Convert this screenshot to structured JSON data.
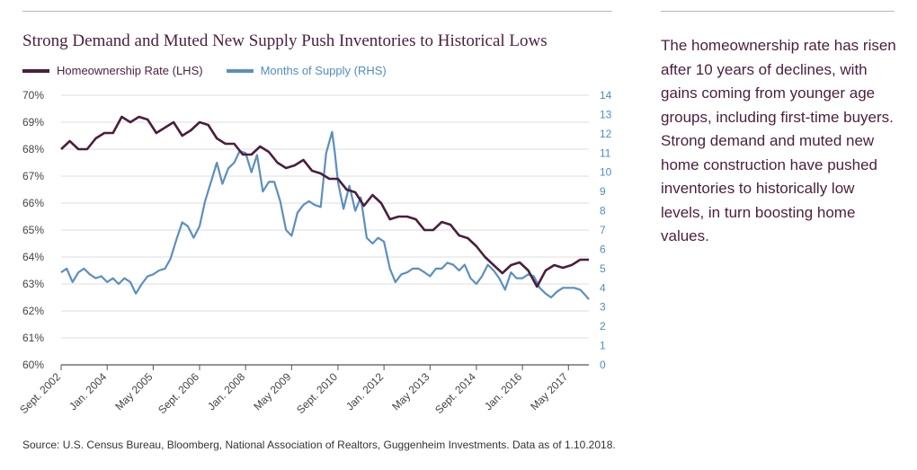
{
  "title": "Strong Demand and Muted New Supply Push Inventories to Historical Lows",
  "side_text": "The homeownership rate has risen after 10 years of declines, with gains coming from younger age groups, including first-time buyers. Strong demand and muted new home construction have pushed inventories to historically low levels, in turn boosting home values.",
  "source": "Source: U.S. Census Bureau, Bloomberg, National Association of Realtors, Guggenheim Investments. Data as of 1.10.2018.",
  "colors": {
    "homeownership": "#4a1f3d",
    "supply": "#5b8fc0",
    "axis": "#777777"
  },
  "chart_data": {
    "type": "line",
    "title": "Strong Demand and Muted New Supply Push Inventories to Historical Lows",
    "x_range": [
      2002.67,
      2017.92
    ],
    "x_ticks": [
      2002.67,
      2004.0,
      2005.33,
      2006.67,
      2008.0,
      2009.33,
      2010.67,
      2012.0,
      2013.33,
      2014.67,
      2016.0,
      2017.33
    ],
    "x_tick_labels": [
      "Sept. 2002",
      "Jan. 2004",
      "May 2005",
      "Sept. 2006",
      "Jan. 2008",
      "May 2009",
      "Sept. 2010",
      "Jan. 2012",
      "May 2013",
      "Sept. 2014",
      "Jan. 2016",
      "May 2017"
    ],
    "y_left": {
      "range": [
        60,
        70
      ],
      "tick_labels": [
        "60%",
        "61%",
        "62%",
        "63%",
        "64%",
        "65%",
        "66%",
        "67%",
        "68%",
        "69%",
        "70%"
      ]
    },
    "y_right": {
      "range": [
        0,
        14
      ],
      "tick_labels": [
        "0",
        "1",
        "2",
        "3",
        "4",
        "5",
        "6",
        "7",
        "8",
        "9",
        "10",
        "11",
        "12",
        "13",
        "14"
      ]
    },
    "grid": true,
    "legend": "top-left",
    "series": [
      {
        "name": "Homeownership Rate (LHS)",
        "axis": "left",
        "x": [
          2002.67,
          2002.92,
          2003.17,
          2003.42,
          2003.67,
          2003.92,
          2004.17,
          2004.42,
          2004.67,
          2004.92,
          2005.17,
          2005.42,
          2005.67,
          2005.92,
          2006.17,
          2006.42,
          2006.67,
          2006.92,
          2007.17,
          2007.42,
          2007.67,
          2007.92,
          2008.17,
          2008.42,
          2008.67,
          2008.92,
          2009.17,
          2009.42,
          2009.67,
          2009.92,
          2010.17,
          2010.42,
          2010.67,
          2010.92,
          2011.17,
          2011.42,
          2011.67,
          2011.92,
          2012.17,
          2012.42,
          2012.67,
          2012.92,
          2013.17,
          2013.42,
          2013.67,
          2013.92,
          2014.17,
          2014.42,
          2014.67,
          2014.92,
          2015.17,
          2015.42,
          2015.67,
          2015.92,
          2016.17,
          2016.42,
          2016.67,
          2016.92,
          2017.17,
          2017.42,
          2017.67,
          2017.92
        ],
        "values": [
          68.0,
          68.3,
          68.0,
          68.0,
          68.4,
          68.6,
          68.6,
          69.2,
          69.0,
          69.2,
          69.1,
          68.6,
          68.8,
          69.0,
          68.5,
          68.7,
          69.0,
          68.9,
          68.4,
          68.2,
          68.2,
          67.8,
          67.8,
          68.1,
          67.9,
          67.5,
          67.3,
          67.4,
          67.6,
          67.2,
          67.1,
          66.9,
          66.9,
          66.5,
          66.4,
          65.9,
          66.3,
          66.0,
          65.4,
          65.5,
          65.5,
          65.4,
          65.0,
          65.0,
          65.3,
          65.2,
          64.8,
          64.7,
          64.4,
          64.0,
          63.7,
          63.4,
          63.7,
          63.8,
          63.5,
          62.9,
          63.5,
          63.7,
          63.6,
          63.7,
          63.9,
          63.9
        ]
      },
      {
        "name": "Months of Supply (RHS)",
        "axis": "right",
        "x": [
          2002.67,
          2002.83,
          2003.0,
          2003.17,
          2003.33,
          2003.5,
          2003.67,
          2003.83,
          2004.0,
          2004.17,
          2004.33,
          2004.5,
          2004.67,
          2004.83,
          2005.0,
          2005.17,
          2005.33,
          2005.5,
          2005.67,
          2005.83,
          2006.0,
          2006.17,
          2006.33,
          2006.5,
          2006.67,
          2006.83,
          2007.0,
          2007.17,
          2007.33,
          2007.5,
          2007.67,
          2007.83,
          2008.0,
          2008.17,
          2008.33,
          2008.5,
          2008.67,
          2008.83,
          2009.0,
          2009.17,
          2009.33,
          2009.5,
          2009.67,
          2009.83,
          2010.0,
          2010.17,
          2010.33,
          2010.5,
          2010.58,
          2010.67,
          2010.83,
          2011.0,
          2011.17,
          2011.33,
          2011.5,
          2011.67,
          2011.83,
          2012.0,
          2012.17,
          2012.33,
          2012.5,
          2012.67,
          2012.83,
          2013.0,
          2013.17,
          2013.33,
          2013.5,
          2013.67,
          2013.83,
          2014.0,
          2014.17,
          2014.33,
          2014.5,
          2014.67,
          2014.83,
          2015.0,
          2015.17,
          2015.33,
          2015.5,
          2015.67,
          2015.83,
          2016.0,
          2016.17,
          2016.33,
          2016.5,
          2016.67,
          2016.83,
          2017.0,
          2017.17,
          2017.33,
          2017.5,
          2017.67,
          2017.83,
          2017.92
        ],
        "values": [
          4.8,
          5.0,
          4.3,
          4.8,
          5.0,
          4.7,
          4.5,
          4.6,
          4.3,
          4.5,
          4.2,
          4.5,
          4.3,
          3.7,
          4.2,
          4.6,
          4.7,
          4.9,
          5.0,
          5.5,
          6.5,
          7.4,
          7.2,
          6.6,
          7.2,
          8.5,
          9.5,
          10.5,
          9.4,
          10.2,
          10.5,
          11.1,
          11.0,
          10.0,
          10.9,
          9.0,
          9.5,
          9.5,
          8.5,
          7.0,
          6.7,
          7.9,
          8.3,
          8.5,
          8.3,
          8.2,
          11.0,
          12.1,
          11.0,
          9.5,
          8.1,
          9.3,
          8.0,
          8.7,
          6.6,
          6.3,
          6.6,
          6.4,
          5.0,
          4.3,
          4.7,
          4.8,
          5.0,
          5.0,
          4.8,
          4.6,
          5.0,
          5.0,
          5.3,
          5.2,
          4.9,
          5.2,
          4.5,
          4.2,
          4.6,
          5.2,
          4.9,
          4.5,
          3.9,
          4.8,
          4.5,
          4.5,
          4.7,
          4.6,
          4.0,
          3.7,
          3.5,
          3.8,
          4.0,
          4.0,
          4.0,
          3.9,
          3.6,
          3.4
        ]
      }
    ]
  }
}
